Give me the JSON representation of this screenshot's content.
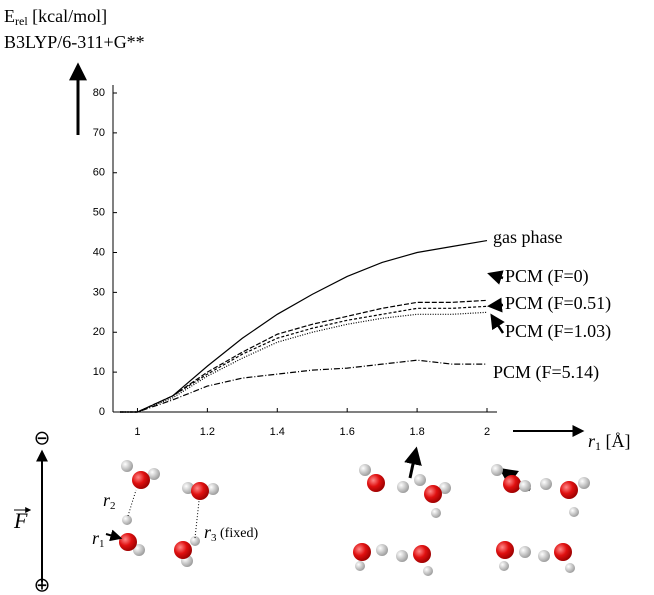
{
  "chart_data": {
    "type": "line",
    "ylabel_main": "E",
    "ylabel_sub": "rel",
    "ylabel_unit": "[kcal/mol]",
    "subtitle": "B3LYP/6-311+G**",
    "xlabel_main": "r",
    "xlabel_sub": "1",
    "xlabel_unit": "[Å]",
    "x": [
      0.95,
      1.0,
      1.1,
      1.2,
      1.3,
      1.4,
      1.5,
      1.6,
      1.7,
      1.8,
      1.9,
      2.0
    ],
    "series": [
      {
        "name": "gas phase",
        "color": "#000000",
        "dash": "none",
        "values": [
          0,
          0,
          4,
          11.5,
          18.5,
          24.5,
          29.5,
          34,
          37.5,
          40,
          41.5,
          43
        ]
      },
      {
        "name": "PCM (F=0)",
        "color": "#000000",
        "dash": "5 2",
        "values": [
          0,
          0,
          4,
          10,
          15,
          19.5,
          22,
          24,
          26,
          27.5,
          27.5,
          28
        ]
      },
      {
        "name": "PCM (F=0.51)",
        "color": "#000000",
        "dash": "3 2",
        "values": [
          0,
          0,
          4,
          9.5,
          14.5,
          18.5,
          21,
          23,
          24.5,
          26,
          26,
          26.5
        ]
      },
      {
        "name": "PCM (F=1.03)",
        "color": "#000000",
        "dash": "1 1.5",
        "values": [
          0,
          0,
          3.5,
          9,
          13.5,
          17.5,
          20,
          22,
          23.5,
          24.5,
          24.5,
          25
        ]
      },
      {
        "name": "PCM (F=5.14)",
        "color": "#000000",
        "dash": "6 2 1 2",
        "values": [
          0,
          0,
          3,
          6.5,
          8.5,
          9.5,
          10.5,
          11,
          12,
          13,
          12,
          12
        ]
      }
    ],
    "xlim": [
      0.93,
      2.0
    ],
    "xticks": [
      1,
      1.2,
      1.4,
      1.6,
      1.8,
      2
    ],
    "ylim": [
      0,
      80
    ],
    "yticks": [
      0,
      10,
      20,
      30,
      40,
      50,
      60,
      70,
      80
    ]
  },
  "diagram": {
    "field": "F",
    "minus": "⊖",
    "plus": "⊕",
    "r2": "r",
    "r2_sub": "2",
    "r1": "r",
    "r1_sub": "1",
    "r3": "r",
    "r3_sub": "3",
    "r3_note": "(fixed)"
  }
}
